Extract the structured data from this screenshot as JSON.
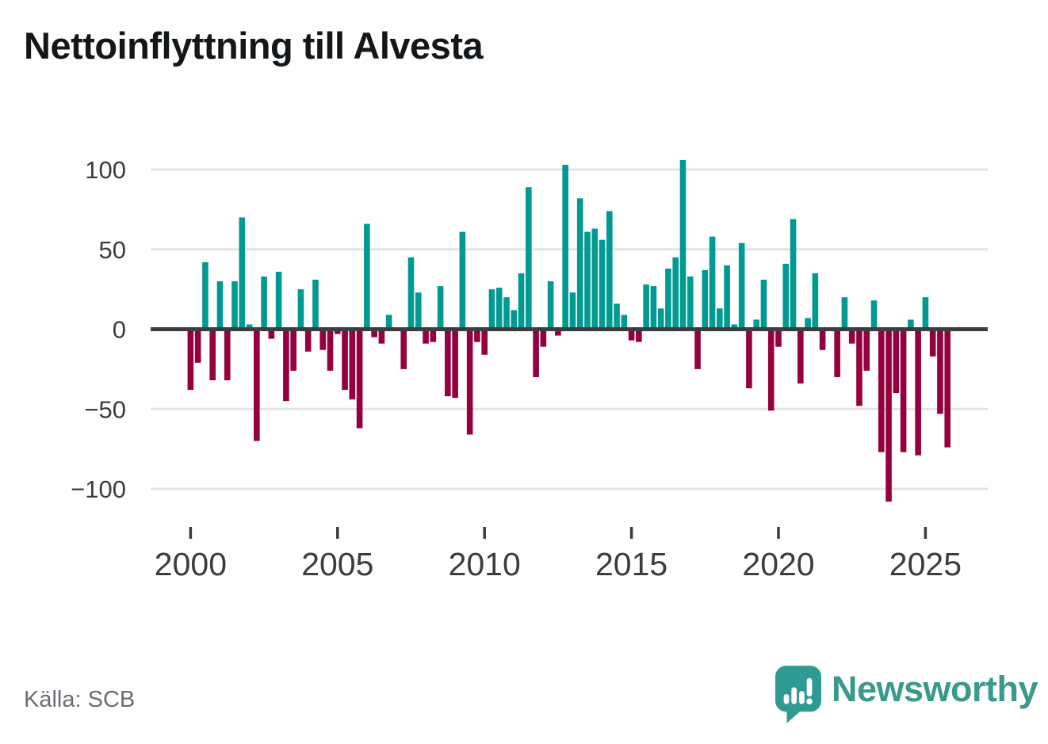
{
  "title": "Nettoinflyttning till Alvesta",
  "source": "Källa: SCB",
  "branding": {
    "name": "Newsworthy"
  },
  "colors": {
    "positive": "#009a92",
    "negative": "#95003f",
    "zero_line": "#3d3d3d",
    "gridline": "#e4e4e4",
    "axis_text": "#3c3c3c",
    "logo": "#2f9a91",
    "wordmark": "#39998f"
  },
  "chart_data": {
    "type": "bar",
    "title": "Nettoinflyttning till Alvesta",
    "grid": true,
    "y_ticks": [
      100,
      50,
      0,
      -50,
      -100
    ],
    "ylim": [
      -115,
      115
    ],
    "x_tick_labels": [
      "2000",
      "2005",
      "2010",
      "2015",
      "2020",
      "2025"
    ],
    "categories": [
      "2000Q1",
      "2000Q2",
      "2000Q3",
      "2000Q4",
      "2001Q1",
      "2001Q2",
      "2001Q3",
      "2001Q4",
      "2002Q1",
      "2002Q2",
      "2002Q3",
      "2002Q4",
      "2003Q1",
      "2003Q2",
      "2003Q3",
      "2003Q4",
      "2004Q1",
      "2004Q2",
      "2004Q3",
      "2004Q4",
      "2005Q1",
      "2005Q2",
      "2005Q3",
      "2005Q4",
      "2006Q1",
      "2006Q2",
      "2006Q3",
      "2006Q4",
      "2007Q1",
      "2007Q2",
      "2007Q3",
      "2007Q4",
      "2008Q1",
      "2008Q2",
      "2008Q3",
      "2008Q4",
      "2009Q1",
      "2009Q2",
      "2009Q3",
      "2009Q4",
      "2010Q1",
      "2010Q2",
      "2010Q3",
      "2010Q4",
      "2011Q1",
      "2011Q2",
      "2011Q3",
      "2011Q4",
      "2012Q1",
      "2012Q2",
      "2012Q3",
      "2012Q4",
      "2013Q1",
      "2013Q2",
      "2013Q3",
      "2013Q4",
      "2014Q1",
      "2014Q2",
      "2014Q3",
      "2014Q4",
      "2015Q1",
      "2015Q2",
      "2015Q3",
      "2015Q4",
      "2016Q1",
      "2016Q2",
      "2016Q3",
      "2016Q4",
      "2017Q1",
      "2017Q2",
      "2017Q3",
      "2017Q4",
      "2018Q1",
      "2018Q2",
      "2018Q3",
      "2018Q4",
      "2019Q1",
      "2019Q2",
      "2019Q3",
      "2019Q4",
      "2020Q1",
      "2020Q2",
      "2020Q3",
      "2020Q4",
      "2021Q1",
      "2021Q2",
      "2021Q3",
      "2021Q4",
      "2022Q1",
      "2022Q2",
      "2022Q3",
      "2022Q4",
      "2023Q1",
      "2023Q2",
      "2023Q3",
      "2023Q4",
      "2024Q1",
      "2024Q2",
      "2024Q3",
      "2024Q4",
      "2025Q1",
      "2025Q2",
      "2025Q3",
      "2025Q4"
    ],
    "values": [
      -38,
      -21,
      42,
      -32,
      30,
      -32,
      30,
      70,
      3,
      -70,
      33,
      -6,
      36,
      -45,
      -26,
      25,
      -14,
      31,
      -13,
      -26,
      -3,
      -38,
      -44,
      -62,
      66,
      -5,
      -9,
      9,
      0,
      -25,
      45,
      23,
      -9,
      -8,
      27,
      -42,
      -43,
      61,
      -66,
      -8,
      -16,
      25,
      26,
      20,
      12,
      35,
      89,
      -30,
      -11,
      30,
      -4,
      103,
      23,
      82,
      61,
      63,
      56,
      74,
      16,
      9,
      -7,
      -8,
      28,
      27,
      13,
      38,
      45,
      106,
      33,
      -25,
      37,
      58,
      13,
      40,
      3,
      54,
      -37,
      6,
      31,
      -51,
      -11,
      41,
      69,
      -34,
      7,
      35,
      -13,
      0,
      -30,
      20,
      -9,
      -48,
      -26,
      18,
      -77,
      -108,
      -40,
      -77,
      6,
      -79,
      20,
      -17,
      -53,
      -74
    ]
  }
}
